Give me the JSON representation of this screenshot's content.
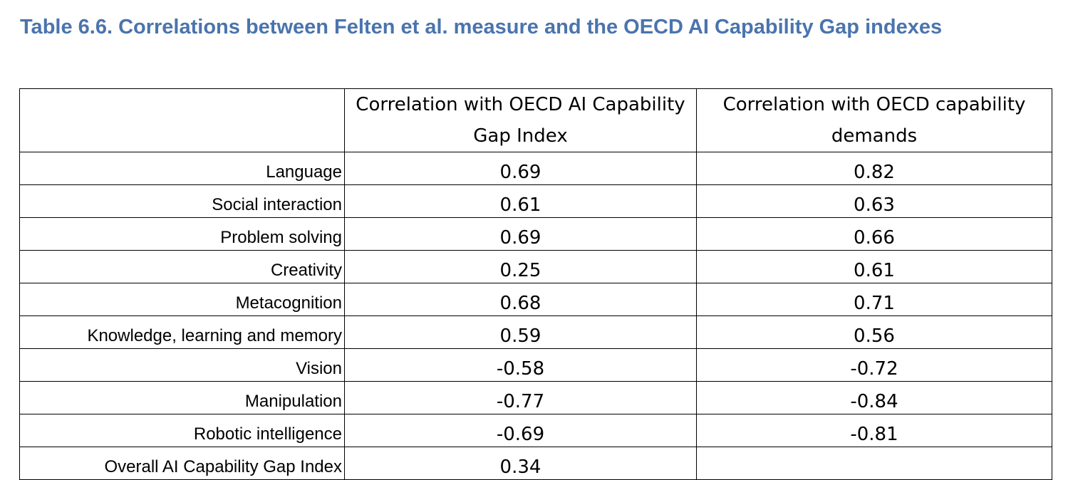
{
  "title": "Table 6.6. Correlations between Felten et al. measure and the OECD AI Capability Gap indexes",
  "table": {
    "headers": [
      "",
      "Correlation with OECD AI Capability Gap Index",
      "Correlation with OECD capability demands"
    ],
    "rows": [
      {
        "label": "Language",
        "gap": "0.69",
        "demands": "0.82"
      },
      {
        "label": "Social interaction",
        "gap": "0.61",
        "demands": "0.63"
      },
      {
        "label": "Problem solving",
        "gap": "0.69",
        "demands": "0.66"
      },
      {
        "label": "Creativity",
        "gap": "0.25",
        "demands": "0.61"
      },
      {
        "label": "Metacognition",
        "gap": "0.68",
        "demands": "0.71"
      },
      {
        "label": "Knowledge, learning and memory",
        "gap": "0.59",
        "demands": "0.56"
      },
      {
        "label": "Vision",
        "gap": "-0.58",
        "demands": "-0.72"
      },
      {
        "label": "Manipulation",
        "gap": "-0.77",
        "demands": "-0.84"
      },
      {
        "label": "Robotic intelligence",
        "gap": "-0.69",
        "demands": "-0.81"
      },
      {
        "label": "Overall AI Capability Gap Index",
        "gap": "0.34",
        "demands": ""
      }
    ]
  },
  "colors": {
    "title": "#4a74ad",
    "border": "#000000",
    "text": "#000000"
  }
}
